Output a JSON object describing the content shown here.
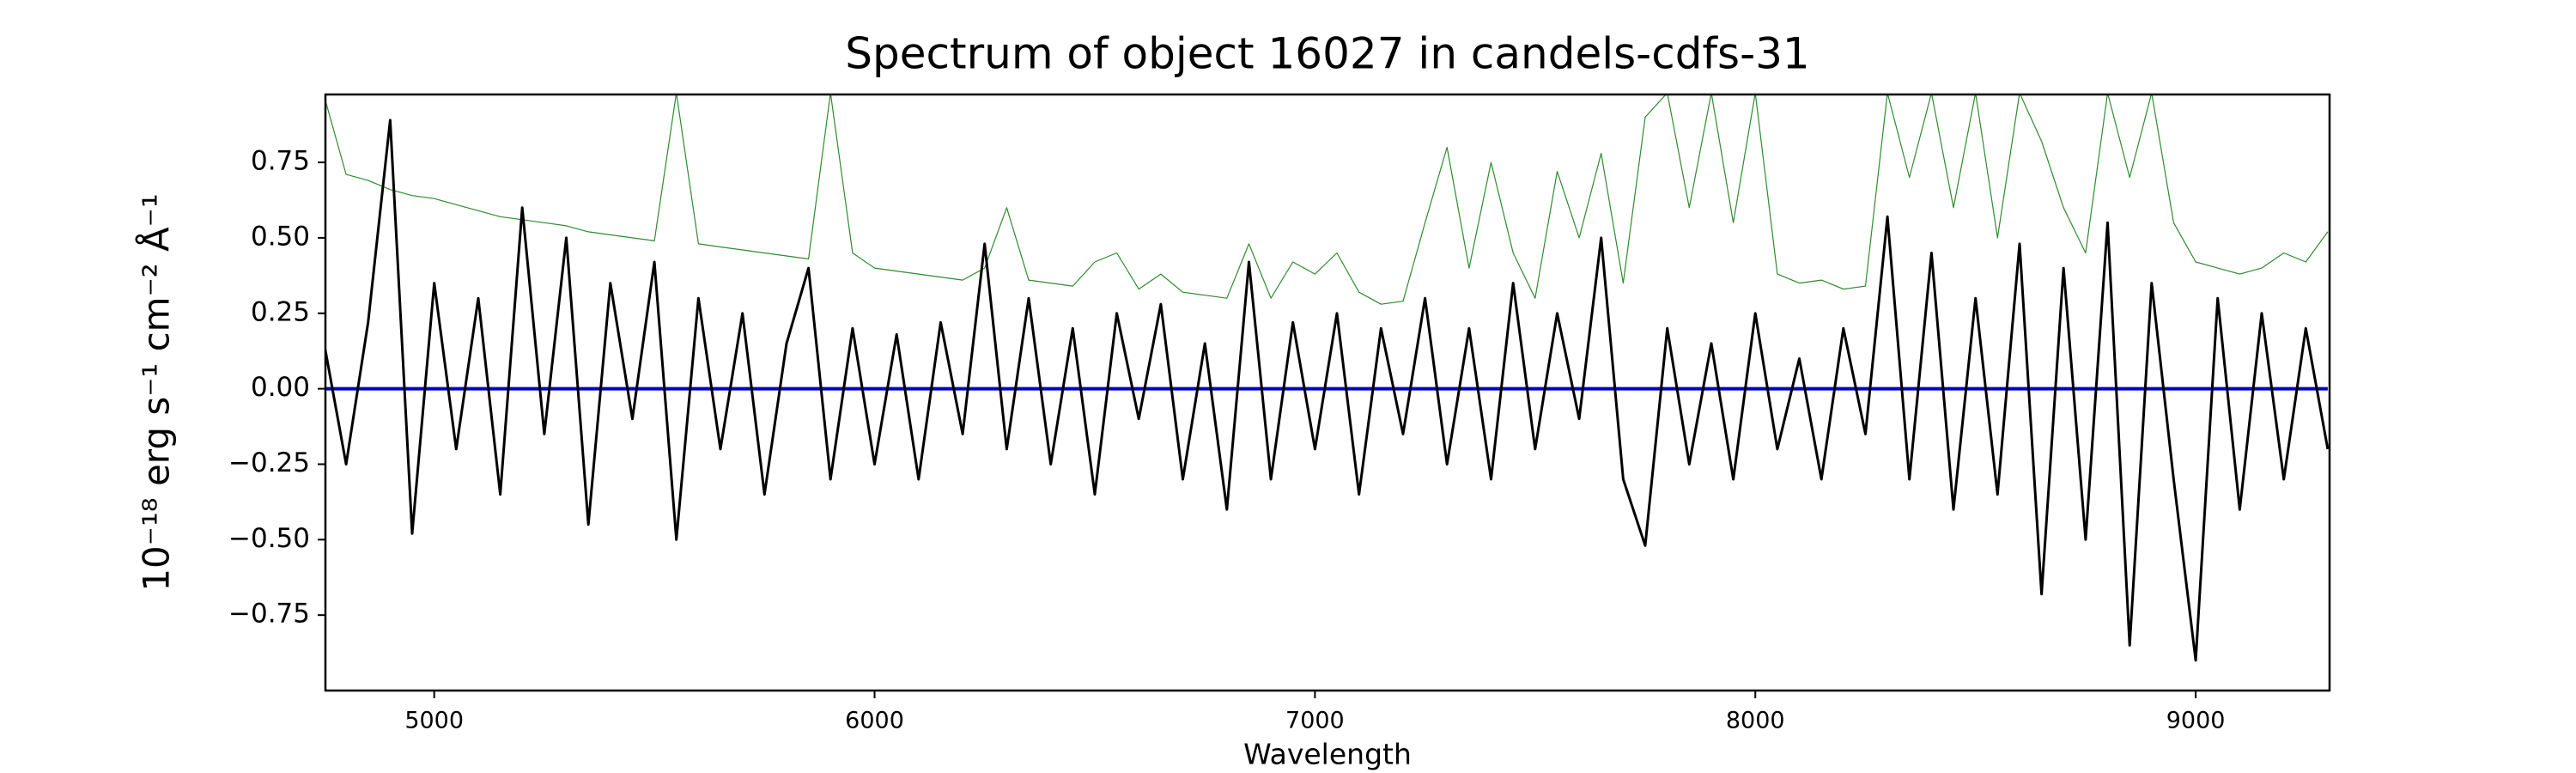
{
  "chart_data": {
    "type": "line",
    "title": "Spectrum of object 16027 in candels-cdfs-31",
    "x_label": "Wavelength",
    "y_label": "10⁻¹⁸ erg s⁻¹ cm⁻² Å⁻¹",
    "xlim": [
      4753,
      9304
    ],
    "ylim": [
      -1.0,
      0.975
    ],
    "xticks": [
      5000,
      6000,
      7000,
      8000,
      9000
    ],
    "yticks": [
      {
        "value": -0.75,
        "label": "−0.75"
      },
      {
        "value": -0.5,
        "label": "−0.50"
      },
      {
        "value": -0.25,
        "label": "−0.25"
      },
      {
        "value": 0,
        "label": "0.00"
      },
      {
        "value": 0.25,
        "label": "0.25"
      },
      {
        "value": 0.5,
        "label": "0.50"
      },
      {
        "value": 0.75,
        "label": "0.75"
      }
    ],
    "x": [
      4750,
      4800,
      4850,
      4900,
      4950,
      5000,
      5050,
      5100,
      5150,
      5200,
      5250,
      5300,
      5350,
      5400,
      5450,
      5500,
      5550,
      5600,
      5650,
      5700,
      5750,
      5800,
      5850,
      5900,
      5950,
      6000,
      6050,
      6100,
      6150,
      6200,
      6250,
      6300,
      6350,
      6400,
      6450,
      6500,
      6550,
      6600,
      6650,
      6700,
      6750,
      6800,
      6850,
      6900,
      6950,
      7000,
      7050,
      7100,
      7150,
      7200,
      7250,
      7300,
      7350,
      7400,
      7450,
      7500,
      7550,
      7600,
      7650,
      7700,
      7750,
      7800,
      7850,
      7900,
      7950,
      8000,
      8050,
      8100,
      8150,
      8200,
      8250,
      8300,
      8350,
      8400,
      8450,
      8500,
      8550,
      8600,
      8650,
      8700,
      8750,
      8800,
      8850,
      8900,
      8950,
      9000,
      9050,
      9100,
      9150,
      9200,
      9250,
      9300
    ],
    "series": [
      {
        "color": "#2e8b2e",
        "width": 1.2,
        "values": [
          0.97,
          0.71,
          0.69,
          0.66,
          0.64,
          0.63,
          0.61,
          0.59,
          0.57,
          0.56,
          0.55,
          0.54,
          0.52,
          0.51,
          0.5,
          0.49,
          0.98,
          0.48,
          0.47,
          0.46,
          0.45,
          0.44,
          0.43,
          0.98,
          0.45,
          0.4,
          0.39,
          0.38,
          0.37,
          0.36,
          0.4,
          0.6,
          0.36,
          0.35,
          0.34,
          0.42,
          0.45,
          0.33,
          0.38,
          0.32,
          0.31,
          0.3,
          0.48,
          0.3,
          0.42,
          0.38,
          0.45,
          0.32,
          0.28,
          0.29,
          0.55,
          0.8,
          0.4,
          0.75,
          0.45,
          0.3,
          0.72,
          0.5,
          0.78,
          0.35,
          0.9,
          0.98,
          0.6,
          0.98,
          0.55,
          0.98,
          0.38,
          0.35,
          0.36,
          0.33,
          0.34,
          0.98,
          0.7,
          0.98,
          0.6,
          0.98,
          0.5,
          0.98,
          0.82,
          0.6,
          0.45,
          0.98,
          0.7,
          0.98,
          0.55,
          0.42,
          0.4,
          0.38,
          0.4,
          0.45,
          0.42,
          0.52
        ]
      },
      {
        "color": "#0000cd",
        "width": 4,
        "values": [
          0,
          0,
          0,
          0,
          0,
          0,
          0,
          0,
          0,
          0,
          0,
          0,
          0,
          0,
          0,
          0,
          0,
          0,
          0,
          0,
          0,
          0,
          0,
          0,
          0,
          0,
          0,
          0,
          0,
          0,
          0,
          0,
          0,
          0,
          0,
          0,
          0,
          0,
          0,
          0,
          0,
          0,
          0,
          0,
          0,
          0,
          0,
          0,
          0,
          0,
          0,
          0,
          0,
          0,
          0,
          0,
          0,
          0,
          0,
          0,
          0,
          0,
          0,
          0,
          0,
          0,
          0,
          0,
          0,
          0,
          0,
          0,
          0,
          0,
          0,
          0,
          0,
          0,
          0,
          0,
          0,
          0,
          0,
          0,
          0,
          0,
          0,
          0,
          0,
          0,
          0,
          0
        ]
      },
      {
        "color": "#000000",
        "width": 3,
        "values": [
          0.15,
          -0.25,
          0.22,
          0.89,
          -0.48,
          0.35,
          -0.2,
          0.3,
          -0.35,
          0.6,
          -0.15,
          0.5,
          -0.45,
          0.35,
          -0.1,
          0.42,
          -0.5,
          0.3,
          -0.2,
          0.25,
          -0.35,
          0.15,
          0.4,
          -0.3,
          0.2,
          -0.25,
          0.18,
          -0.3,
          0.22,
          -0.15,
          0.48,
          -0.2,
          0.3,
          -0.25,
          0.2,
          -0.35,
          0.25,
          -0.1,
          0.28,
          -0.3,
          0.15,
          -0.4,
          0.42,
          -0.3,
          0.22,
          -0.2,
          0.25,
          -0.35,
          0.2,
          -0.15,
          0.3,
          -0.25,
          0.2,
          -0.3,
          0.35,
          -0.2,
          0.25,
          -0.1,
          0.5,
          -0.3,
          -0.52,
          0.2,
          -0.25,
          0.15,
          -0.3,
          0.25,
          -0.2,
          0.1,
          -0.3,
          0.2,
          -0.15,
          0.57,
          -0.3,
          0.45,
          -0.4,
          0.3,
          -0.35,
          0.48,
          -0.68,
          0.4,
          -0.5,
          0.55,
          -0.85,
          0.35,
          -0.3,
          -0.9,
          0.3,
          -0.4,
          0.25,
          -0.3,
          0.2,
          -0.2
        ]
      }
    ]
  }
}
